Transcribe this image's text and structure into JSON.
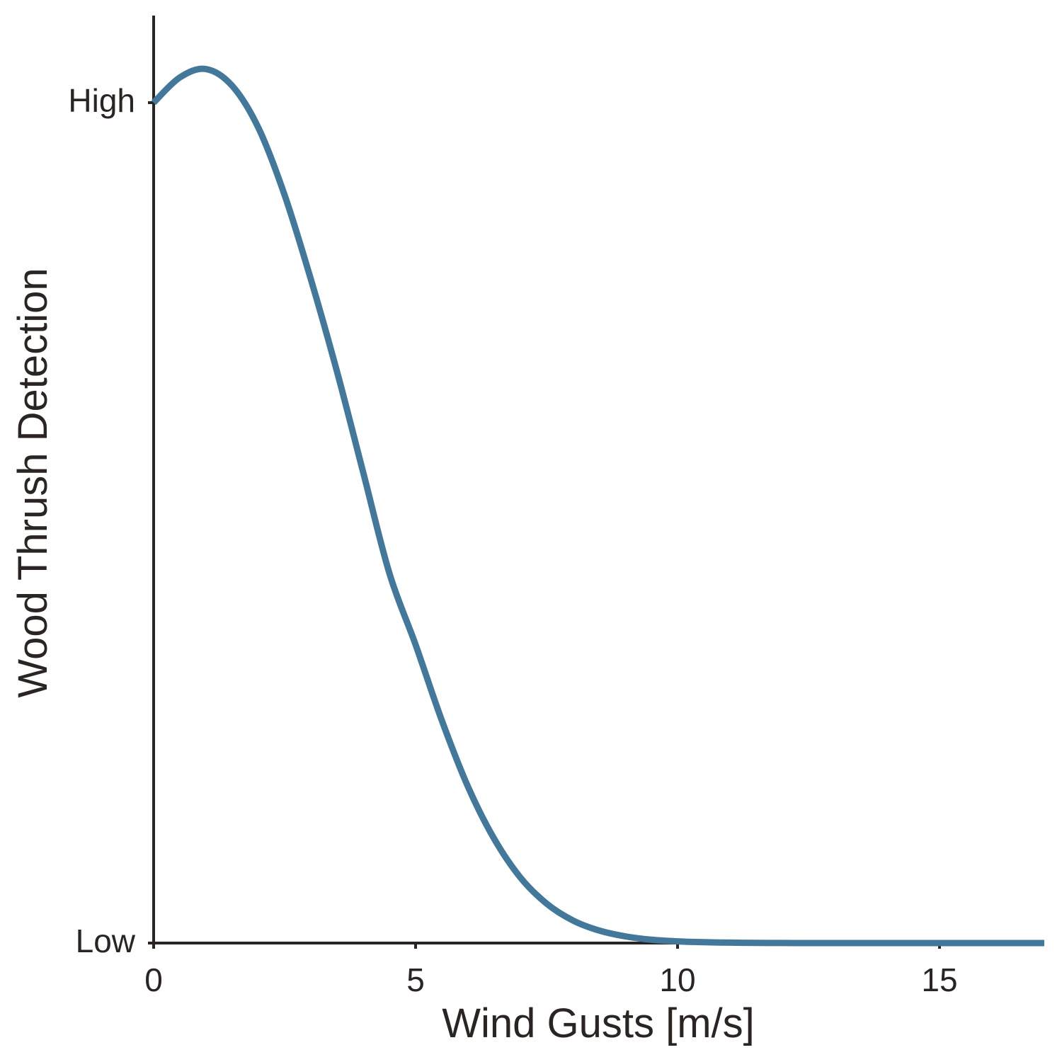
{
  "chart_data": {
    "type": "line",
    "xlabel": "Wind Gusts [m/s]",
    "ylabel": "Wood Thrush Detection",
    "xlim": [
      0,
      17
    ],
    "ylim": [
      0,
      1
    ],
    "x_ticks": [
      {
        "value": 0,
        "label": "0"
      },
      {
        "value": 5,
        "label": "5"
      },
      {
        "value": 10,
        "label": "10"
      },
      {
        "value": 15,
        "label": "15"
      }
    ],
    "y_ticks": [
      {
        "value": 0,
        "label": "Low"
      },
      {
        "value": 1,
        "label": "High"
      }
    ],
    "grid": false,
    "series": [
      {
        "color": "#44789a",
        "x": [
          0,
          0.5,
          1.0,
          1.5,
          2.0,
          2.5,
          3.0,
          3.5,
          4.0,
          4.5,
          5.0,
          5.5,
          6.0,
          6.5,
          7.0,
          7.5,
          8.0,
          8.5,
          9.0,
          9.5,
          10.0,
          10.5,
          11.0,
          11.5,
          12.0,
          12.5,
          13.0,
          13.5,
          14.0,
          15.0,
          16.0,
          17.0
        ],
        "y": [
          1.0,
          1.03,
          1.04,
          1.02,
          0.97,
          0.89,
          0.79,
          0.68,
          0.56,
          0.44,
          0.355,
          0.265,
          0.186,
          0.124,
          0.078,
          0.047,
          0.027,
          0.015,
          0.008,
          0.004,
          0.002,
          0.001,
          0.0005,
          0.0002,
          0.0001,
          0,
          0,
          0,
          0,
          0,
          0,
          0
        ]
      }
    ]
  }
}
